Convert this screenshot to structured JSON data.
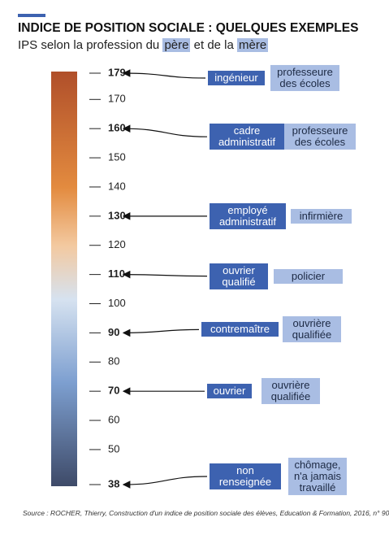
{
  "chart_data": {
    "type": "ips-scale",
    "title": "INDICE DE POSITION SOCIALE : QUELQUES EXEMPLES",
    "subtitle": [
      "IPS selon la profession du",
      "père",
      "et de la",
      "mère"
    ],
    "ylim": [
      38,
      179
    ],
    "yticks": [
      38,
      50,
      60,
      70,
      80,
      90,
      100,
      110,
      120,
      130,
      140,
      150,
      160,
      170,
      179
    ],
    "examples": [
      {
        "value": 179,
        "father": "ingénieur",
        "mother": "professeure des écoles"
      },
      {
        "value": 160,
        "father": "cadre administratif",
        "mother": "professeure des écoles"
      },
      {
        "value": 130,
        "father": "employé administratif",
        "mother": "infirmière"
      },
      {
        "value": 110,
        "father": "ouvrier qualifié",
        "mother": "policier"
      },
      {
        "value": 90,
        "father": "contremaître",
        "mother": "ouvrière qualifiée"
      },
      {
        "value": 70,
        "father": "ouvrier",
        "mother": "ouvrière qualifiée"
      },
      {
        "value": 38,
        "father": "non renseignée",
        "mother": "chômage, n'a jamais travaillé"
      }
    ],
    "father_color": "#3d62b0",
    "mother_color": "#a9bde3",
    "source": "Source : ROCHER, Thierry, Construction d'un indice de position sociale des élèves, Education & Formation, 2016, n° 90"
  }
}
